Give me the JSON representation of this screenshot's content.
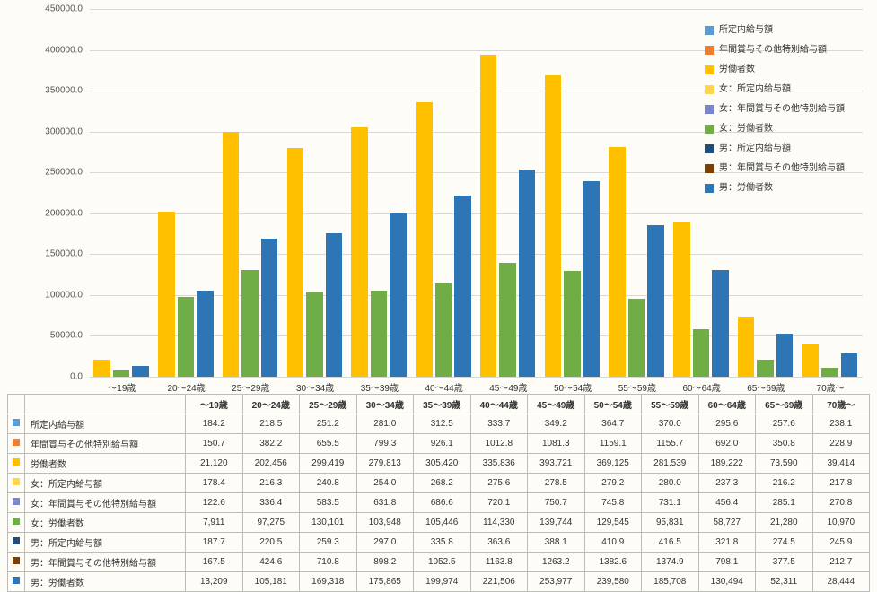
{
  "chart": {
    "type": "grouped-bar",
    "ylim": [
      0,
      450000
    ],
    "ytick_step": 50000,
    "background_color": "#fdfcf7",
    "grid_color": "#d8d8d8",
    "categories": [
      "～19歳",
      "20～24歳",
      "25～29歳",
      "30～34歳",
      "35～39歳",
      "40～44歳",
      "45～49歳",
      "50～54歳",
      "55～59歳",
      "60～64歳",
      "65～69歳",
      "70歳～"
    ],
    "series": [
      {
        "key": "s1",
        "label": "所定内給与額",
        "color": "#5b9bd5"
      },
      {
        "key": "s2",
        "label": "年間賞与その他特別給与額",
        "color": "#ed7d31"
      },
      {
        "key": "s3",
        "label": "労働者数",
        "color": "#ffc000"
      },
      {
        "key": "s4",
        "label": "女：所定内給与額",
        "color": "#ffd54f"
      },
      {
        "key": "s5",
        "label": "女：年間賞与その他特別給与額",
        "color": "#7986cb"
      },
      {
        "key": "s6",
        "label": "女：労働者数",
        "color": "#70ad47"
      },
      {
        "key": "s7",
        "label": "男：所定内給与額",
        "color": "#1f4e79"
      },
      {
        "key": "s8",
        "label": "男：年間賞与その他特別給与額",
        "color": "#7b3f00"
      },
      {
        "key": "s9",
        "label": "男：労働者数",
        "color": "#2e75b6"
      }
    ],
    "bar_series": [
      "s3",
      "s6",
      "s9"
    ],
    "rows": [
      {
        "key": "s1",
        "label": "所定内給与額",
        "color": "#5b9bd5",
        "values": [
          "184.2",
          "218.5",
          "251.2",
          "281.0",
          "312.5",
          "333.7",
          "349.2",
          "364.7",
          "370.0",
          "295.6",
          "257.6",
          "238.1"
        ]
      },
      {
        "key": "s2",
        "label": "年間賞与その他特別給与額",
        "color": "#ed7d31",
        "values": [
          "150.7",
          "382.2",
          "655.5",
          "799.3",
          "926.1",
          "1012.8",
          "1081.3",
          "1159.1",
          "1155.7",
          "692.0",
          "350.8",
          "228.9"
        ]
      },
      {
        "key": "s3",
        "label": "労働者数",
        "color": "#ffc000",
        "values": [
          "21,120",
          "202,456",
          "299,419",
          "279,813",
          "305,420",
          "335,836",
          "393,721",
          "369,125",
          "281,539",
          "189,222",
          "73,590",
          "39,414"
        ]
      },
      {
        "key": "s4",
        "label": "女：所定内給与額",
        "color": "#ffd54f",
        "values": [
          "178.4",
          "216.3",
          "240.8",
          "254.0",
          "268.2",
          "275.6",
          "278.5",
          "279.2",
          "280.0",
          "237.3",
          "216.2",
          "217.8"
        ]
      },
      {
        "key": "s5",
        "label": "女：年間賞与その他特別給与額",
        "color": "#7986cb",
        "values": [
          "122.6",
          "336.4",
          "583.5",
          "631.8",
          "686.6",
          "720.1",
          "750.7",
          "745.8",
          "731.1",
          "456.4",
          "285.1",
          "270.8"
        ]
      },
      {
        "key": "s6",
        "label": "女：労働者数",
        "color": "#70ad47",
        "values": [
          "7,911",
          "97,275",
          "130,101",
          "103,948",
          "105,446",
          "114,330",
          "139,744",
          "129,545",
          "95,831",
          "58,727",
          "21,280",
          "10,970"
        ]
      },
      {
        "key": "s7",
        "label": "男：所定内給与額",
        "color": "#1f4e79",
        "values": [
          "187.7",
          "220.5",
          "259.3",
          "297.0",
          "335.8",
          "363.6",
          "388.1",
          "410.9",
          "416.5",
          "321.8",
          "274.5",
          "245.9"
        ]
      },
      {
        "key": "s8",
        "label": "男：年間賞与その他特別給与額",
        "color": "#7b3f00",
        "values": [
          "167.5",
          "424.6",
          "710.8",
          "898.2",
          "1052.5",
          "1163.8",
          "1263.2",
          "1382.6",
          "1374.9",
          "798.1",
          "377.5",
          "212.7"
        ]
      },
      {
        "key": "s9",
        "label": "男：労働者数",
        "color": "#2e75b6",
        "values": [
          "13,209",
          "105,181",
          "169,318",
          "175,865",
          "199,974",
          "221,506",
          "253,977",
          "239,580",
          "185,708",
          "130,494",
          "52,311",
          "28,444"
        ]
      }
    ]
  }
}
